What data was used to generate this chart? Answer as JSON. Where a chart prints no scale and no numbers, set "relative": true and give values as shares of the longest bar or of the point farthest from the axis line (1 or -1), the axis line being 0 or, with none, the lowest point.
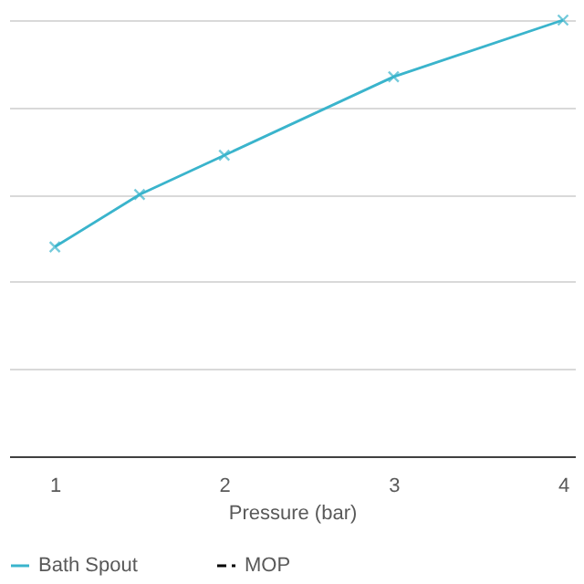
{
  "chart_data": {
    "type": "line",
    "relative": true,
    "xlabel": "Pressure (bar)",
    "x": [
      1,
      1.5,
      2,
      3,
      4
    ],
    "xlim": [
      0.73,
      4.07
    ],
    "xticks": [
      1,
      2,
      3,
      4
    ],
    "grid": "y",
    "legend": "bottom",
    "marker": "cross",
    "series": [
      {
        "name": "Bath Spout",
        "color": "#3ab4cc",
        "values": [
          0.48,
          0.6,
          0.69,
          0.87,
          1
        ],
        "line_style": "solid"
      },
      {
        "name": "MOP",
        "color": "#000000",
        "values": [
          null,
          null,
          null,
          null,
          null
        ],
        "line_style": "dashed"
      }
    ]
  }
}
